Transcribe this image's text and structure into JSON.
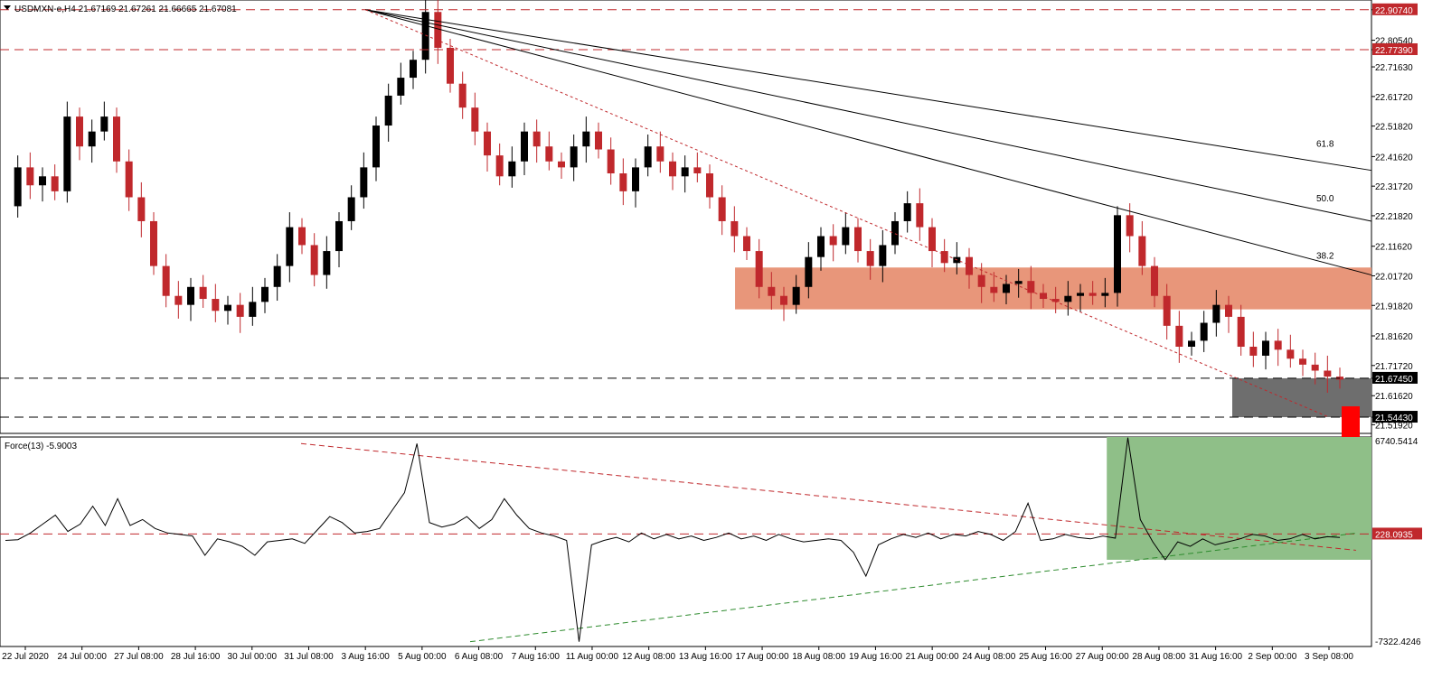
{
  "header": {
    "symbol_label": "USDMXN-e,H4  21.67169 21.67261 21.66665 21.67081",
    "indicator_label": "Force(13) -5.9003"
  },
  "chart_data": [
    {
      "type": "candlestick",
      "symbol": "USDMXN-e",
      "timeframe": "H4",
      "ohlc_current": {
        "open": 21.67169,
        "high": 21.67261,
        "low": 21.66665,
        "close": 21.67081
      },
      "ylim": [
        21.49,
        22.94
      ],
      "y_ticks": [
        "22.90740",
        "22.80540",
        "22.77390",
        "22.71630",
        "22.61720",
        "22.51820",
        "22.41620",
        "22.31720",
        "22.21820",
        "22.11620",
        "22.01720",
        "21.91820",
        "21.81620",
        "21.71720",
        "21.67450",
        "21.61620",
        "21.54430",
        "21.51920"
      ],
      "x_labels": [
        "22 Jul 2020",
        "24 Jul 00:00",
        "27 Jul 08:00",
        "28 Jul 16:00",
        "30 Jul 00:00",
        "31 Jul 08:00",
        "3 Aug 16:00",
        "5 Aug 00:00",
        "6 Aug 08:00",
        "7 Aug 16:00",
        "11 Aug 00:00",
        "12 Aug 08:00",
        "13 Aug 16:00",
        "17 Aug 00:00",
        "18 Aug 08:00",
        "19 Aug 16:00",
        "21 Aug 00:00",
        "24 Aug 08:00",
        "25 Aug 16:00",
        "27 Aug 00:00",
        "28 Aug 08:00",
        "31 Aug 16:00",
        "2 Sep 00:00",
        "3 Sep 08:00"
      ],
      "close_path": [
        22.25,
        22.38,
        22.32,
        22.35,
        22.3,
        22.55,
        22.45,
        22.5,
        22.55,
        22.4,
        22.28,
        22.2,
        22.05,
        21.95,
        21.92,
        21.98,
        21.94,
        21.9,
        21.92,
        21.88,
        21.93,
        21.98,
        22.05,
        22.18,
        22.12,
        22.02,
        22.1,
        22.2,
        22.28,
        22.38,
        22.52,
        22.62,
        22.68,
        22.74,
        22.9,
        22.78,
        22.66,
        22.58,
        22.5,
        22.42,
        22.35,
        22.4,
        22.5,
        22.45,
        22.4,
        22.38,
        22.45,
        22.5,
        22.44,
        22.36,
        22.3,
        22.38,
        22.45,
        22.4,
        22.35,
        22.38,
        22.36,
        22.28,
        22.2,
        22.15,
        22.1,
        21.98,
        21.95,
        21.92,
        21.98,
        22.08,
        22.15,
        22.12,
        22.18,
        22.1,
        22.05,
        22.12,
        22.2,
        22.26,
        22.18,
        22.1,
        22.06,
        22.08,
        22.02,
        21.98,
        21.96,
        21.99,
        22.0,
        21.96,
        21.94,
        21.93,
        21.95,
        21.96,
        21.95,
        21.96,
        22.22,
        22.15,
        22.05,
        21.95,
        21.85,
        21.78,
        21.8,
        21.86,
        21.92,
        21.88,
        21.78,
        21.75,
        21.8,
        21.77,
        21.74,
        21.72,
        21.7,
        21.68,
        21.67
      ],
      "horizontal_levels": {
        "red_dashed": [
          22.9074,
          22.7739
        ],
        "black_dashed": [
          21.6745,
          21.5443
        ]
      },
      "level_labels": [
        "22.90740",
        "22.77390",
        "21.67450",
        "21.54430"
      ],
      "zones": [
        {
          "name": "resistance-zone",
          "color": "#E8967A",
          "from_date": "17 Aug 00:00",
          "y_range": [
            21.905,
            22.045
          ]
        },
        {
          "name": "support-zone",
          "color": "#6E6E6E",
          "from_date": "1 Sep 08:00",
          "y_range": [
            21.5443,
            21.6745
          ]
        }
      ],
      "fibonacci_fan": {
        "levels": [
          "38.2",
          "50.0",
          "61.8"
        ],
        "origin_price": 22.9074,
        "origin_date": "3 Aug 16:00"
      },
      "trendline_red_dotted": {
        "from_price": 22.9074,
        "from_date": "3 Aug 16:00",
        "to_price": 21.5443,
        "to_date": "3 Sep 08:00"
      },
      "arrow": {
        "direction": "down",
        "color": "#FF0000"
      },
      "colors": {
        "bull": "#000000",
        "bear": "#C0282C",
        "label_red": "#C0282C",
        "label_black": "#000000"
      }
    },
    {
      "type": "line",
      "name": "Force(13)",
      "value": -5.9003,
      "ylim": [
        -7322.4246,
        6740.5414
      ],
      "y_ticks": [
        "6740.5414",
        "228.0935",
        "-7322.4246"
      ],
      "series_path": [
        -200,
        -150,
        300,
        900,
        1500,
        400,
        900,
        2100,
        800,
        2600,
        800,
        1200,
        600,
        300,
        200,
        100,
        -1200,
        -100,
        -300,
        -600,
        -1200,
        -300,
        -200,
        -100,
        -400,
        500,
        1400,
        1000,
        300,
        400,
        600,
        1800,
        3000,
        6300,
        1000,
        700,
        900,
        1400,
        600,
        1200,
        2600,
        1500,
        600,
        300,
        100,
        -200,
        -7000,
        -500,
        -200,
        0,
        -300,
        300,
        -100,
        200,
        -100,
        100,
        -200,
        0,
        300,
        -100,
        100,
        -200,
        200,
        -100,
        -300,
        -200,
        -100,
        -200,
        -1000,
        -2600,
        -500,
        -100,
        200,
        0,
        300,
        -100,
        200,
        100,
        400,
        200,
        -200,
        400,
        2300,
        -200,
        -100,
        200,
        0,
        -100,
        100,
        -50,
        6700,
        1200,
        -300,
        -1500,
        -300,
        -600,
        -100,
        -500,
        -300,
        -100,
        200,
        100,
        -200,
        -100,
        200,
        -100,
        50,
        -5.9
      ],
      "horizontal_level": 228.0935,
      "zone": {
        "color": "#8FBF88",
        "from_date": "27 Aug 00:00",
        "range": [
          -1500,
          6740
        ]
      },
      "trendlines": {
        "red_dashed": {
          "from": 6300,
          "to": 228.0935
        },
        "green_dashed": {
          "from": -7000,
          "to": -200
        }
      }
    }
  ]
}
